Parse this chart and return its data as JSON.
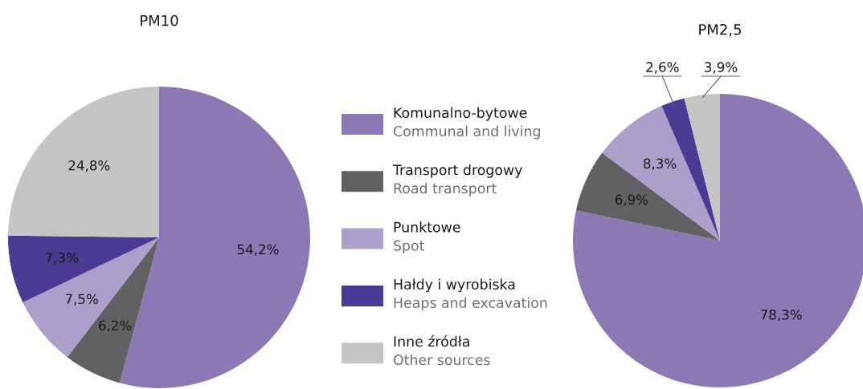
{
  "chart_data": [
    {
      "type": "pie",
      "title": "PM10",
      "legend": "right",
      "categories": [
        "Komunalno-bytowe\nCommunal and living",
        "Transport drogowy\nRoad transport",
        "Punktowe\nSpot",
        "Hałdy i wyrobiska\nHeaps and excavation",
        "Inne źródła\nOther sources"
      ],
      "values": [
        54.2,
        6.2,
        7.5,
        7.3,
        24.8
      ],
      "value_labels": [
        "54,2%",
        "6,2%",
        "7,5%",
        "7,3%",
        "24,8%"
      ],
      "colors": [
        "#8b78b5",
        "#5f6163",
        "#ad9fcc",
        "#4b3a94",
        "#c4c5c5"
      ]
    },
    {
      "type": "pie",
      "title": "PM2,5",
      "categories": [
        null,
        null,
        null,
        null,
        null
      ],
      "values": [
        78.3,
        6.9,
        8.3,
        2.6,
        3.9
      ],
      "value_labels": [
        "78,3%",
        "6,9%",
        "8,3%",
        "2,6%",
        "3,9%"
      ],
      "colors": [
        "#8b78b5",
        "#5f6163",
        "#ad9fcc",
        "#4b3a94",
        "#c4c5c5"
      ]
    }
  ]
}
